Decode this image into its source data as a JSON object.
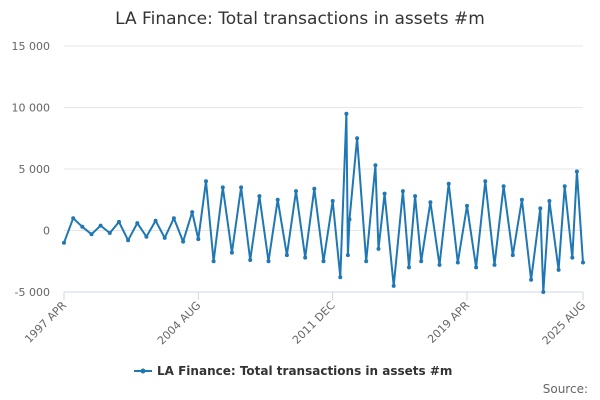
{
  "chart_data": {
    "type": "line",
    "title": "LA Finance: Total transactions in assets #m",
    "xlabel": "",
    "ylabel": "",
    "x_range": [
      "1997-04",
      "2025-08"
    ],
    "x_tick_labels": [
      "1997 APR",
      "2004 AUG",
      "2011 DEC",
      "2019 APR",
      "2025 AUG"
    ],
    "x_tick_dates": [
      "1997-04",
      "2004-08",
      "2011-12",
      "2019-04",
      "2025-08"
    ],
    "y_tick_labels": [
      "15 000",
      "10 000",
      "5 000",
      "0",
      "-5 000"
    ],
    "y_tick_values": [
      15000,
      10000,
      5000,
      0,
      -5000
    ],
    "ylim": [
      -5000,
      15000
    ],
    "grid": true,
    "legend_position": "bottom",
    "colors": {
      "series": "#1f77b4"
    },
    "series": [
      {
        "name": "LA Finance: Total transactions in assets #m",
        "x": [
          "1997-04",
          "1997-10",
          "1998-04",
          "1998-10",
          "1999-04",
          "1999-10",
          "2000-04",
          "2000-10",
          "2001-04",
          "2001-10",
          "2002-04",
          "2002-10",
          "2003-04",
          "2003-10",
          "2004-04",
          "2004-08",
          "2005-01",
          "2005-06",
          "2005-12",
          "2006-06",
          "2006-12",
          "2007-06",
          "2007-12",
          "2008-06",
          "2008-12",
          "2009-06",
          "2009-12",
          "2010-06",
          "2010-12",
          "2011-06",
          "2011-12",
          "2012-05",
          "2012-09",
          "2012-10",
          "2012-11",
          "2013-04",
          "2013-10",
          "2014-04",
          "2014-06",
          "2014-10",
          "2015-04",
          "2015-10",
          "2016-02",
          "2016-06",
          "2016-10",
          "2017-04",
          "2017-10",
          "2018-04",
          "2018-10",
          "2019-04",
          "2019-10",
          "2020-04",
          "2020-10",
          "2021-04",
          "2021-10",
          "2022-04",
          "2022-10",
          "2023-04",
          "2023-06",
          "2023-10",
          "2024-04",
          "2024-08",
          "2025-01",
          "2025-04",
          "2025-08"
        ],
        "y": [
          -1000,
          1000,
          300,
          -300,
          400,
          -200,
          700,
          -800,
          600,
          -500,
          800,
          -600,
          1000,
          -900,
          1500,
          -700,
          4000,
          -2500,
          3500,
          -1800,
          3500,
          -2400,
          2800,
          -2500,
          2500,
          -2000,
          3200,
          -2200,
          3400,
          -2500,
          2400,
          -3800,
          9500,
          -2000,
          900,
          7500,
          -2500,
          5300,
          -1500,
          3000,
          -4500,
          3200,
          -3000,
          2800,
          -2500,
          2300,
          -2800,
          3800,
          -2600,
          2000,
          -3000,
          4000,
          -2800,
          3600,
          -2000,
          2500,
          -4000,
          1800,
          -5000,
          2400,
          -3200,
          3600,
          -2200,
          4800,
          -2600
        ]
      }
    ]
  },
  "legend": {
    "label": "LA Finance: Total transactions in assets #m"
  },
  "credits": {
    "label": "Source:"
  }
}
